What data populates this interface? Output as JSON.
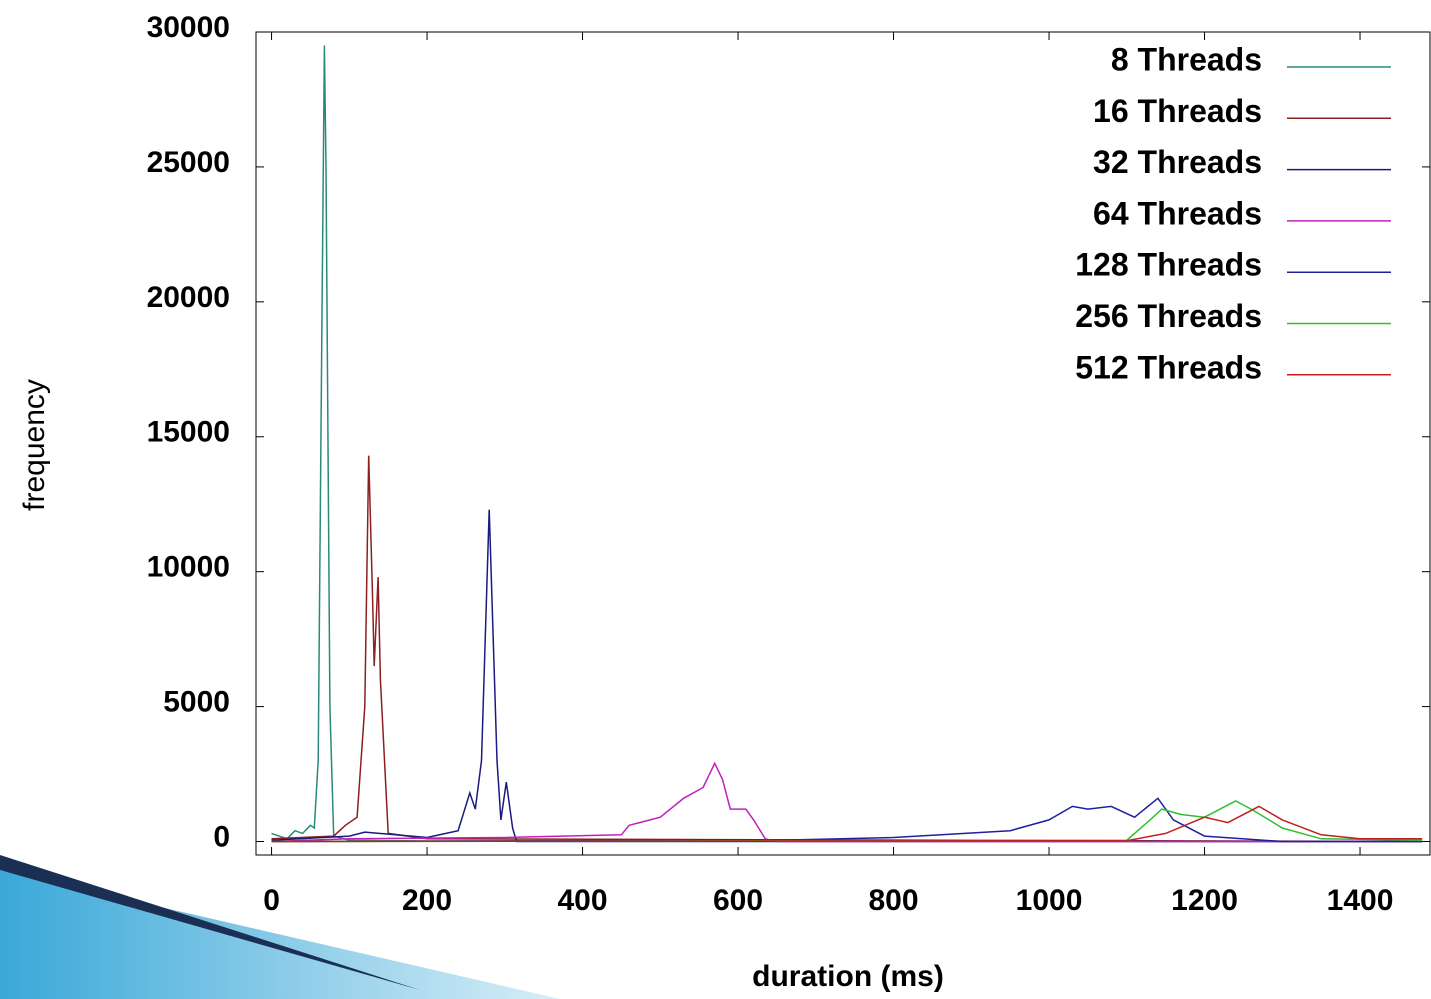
{
  "chart_data": {
    "type": "line",
    "x_label": "duration (ms)",
    "y_label": "frequency",
    "xlim": [
      -20,
      1490
    ],
    "ylim": [
      -500,
      30000
    ],
    "xticks": [
      0,
      200,
      400,
      600,
      800,
      1000,
      1200,
      1400
    ],
    "yticks": [
      0,
      5000,
      10000,
      15000,
      20000,
      25000,
      30000
    ],
    "legend": "upper-right",
    "series": [
      {
        "name": "8 Threads",
        "color": "#2a8a7a",
        "x": [
          0,
          20,
          30,
          40,
          50,
          55,
          60,
          65,
          68,
          70,
          75,
          80,
          100,
          200,
          1480
        ],
        "values": [
          300,
          100,
          400,
          300,
          600,
          500,
          3000,
          20000,
          29500,
          25000,
          5000,
          200,
          50,
          20,
          0
        ]
      },
      {
        "name": "16 Threads",
        "color": "#8b2020",
        "x": [
          0,
          80,
          95,
          110,
          120,
          125,
          130,
          132,
          137,
          140,
          150,
          200,
          1480
        ],
        "values": [
          100,
          200,
          600,
          900,
          5000,
          14300,
          9000,
          6500,
          9800,
          6000,
          300,
          100,
          0
        ]
      },
      {
        "name": "32 Threads",
        "color": "#1a1a80",
        "x": [
          0,
          100,
          120,
          200,
          240,
          255,
          262,
          270,
          280,
          290,
          295,
          302,
          310,
          315,
          1480
        ],
        "values": [
          50,
          200,
          350,
          150,
          400,
          1800,
          1200,
          3000,
          12300,
          3000,
          800,
          2200,
          500,
          0,
          0
        ]
      },
      {
        "name": "64 Threads",
        "color": "#c020c0",
        "x": [
          0,
          100,
          300,
          450,
          460,
          500,
          530,
          555,
          570,
          580,
          590,
          610,
          620,
          635,
          650,
          1480
        ],
        "values": [
          0,
          100,
          150,
          250,
          600,
          900,
          1600,
          2000,
          2900,
          2300,
          1200,
          1200,
          800,
          100,
          0,
          0
        ]
      },
      {
        "name": "128 Threads",
        "color": "#2020a0",
        "x": [
          0,
          650,
          800,
          950,
          1000,
          1030,
          1050,
          1080,
          1110,
          1140,
          1160,
          1200,
          1300,
          1480
        ],
        "values": [
          0,
          50,
          150,
          400,
          800,
          1300,
          1200,
          1300,
          900,
          1600,
          800,
          200,
          0,
          0
        ]
      },
      {
        "name": "256 Threads",
        "color": "#30c030",
        "x": [
          0,
          1100,
          1130,
          1145,
          1170,
          1200,
          1240,
          1260,
          1300,
          1350,
          1480
        ],
        "values": [
          0,
          50,
          800,
          1200,
          1000,
          900,
          1500,
          1200,
          500,
          100,
          50
        ]
      },
      {
        "name": "512 Threads",
        "color": "#c02020",
        "x": [
          0,
          1100,
          1150,
          1200,
          1230,
          1270,
          1300,
          1350,
          1400,
          1480
        ],
        "values": [
          0,
          30,
          300,
          900,
          700,
          1300,
          800,
          250,
          100,
          100
        ]
      }
    ]
  }
}
